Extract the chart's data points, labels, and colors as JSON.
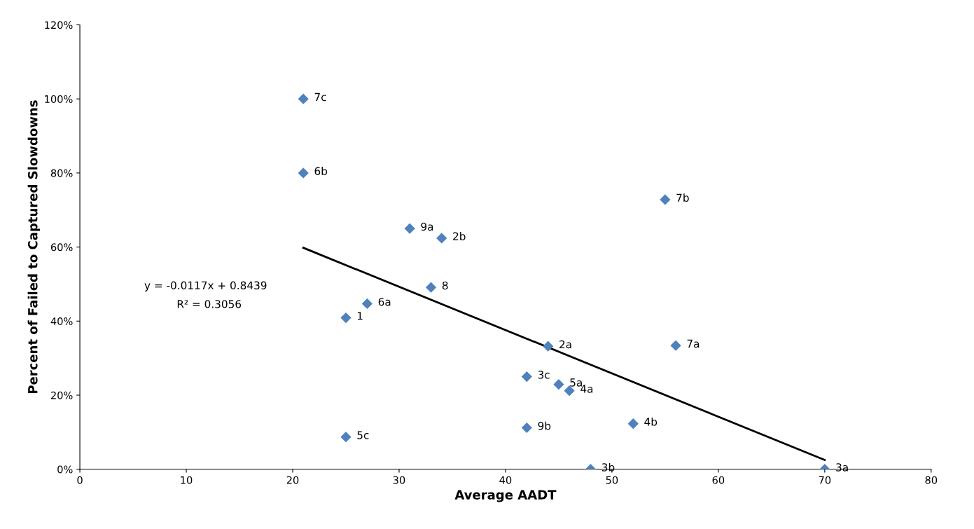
{
  "chart_data": {
    "type": "scatter",
    "xlabel": "Average AADT",
    "ylabel": "Percent of Failed to Captured Slowdowns",
    "xlim": [
      0,
      80
    ],
    "xticks": [
      0,
      10,
      20,
      30,
      40,
      50,
      60,
      70,
      80
    ],
    "ylim": [
      0,
      120
    ],
    "yticks": [
      {
        "value": 0,
        "label": "0%"
      },
      {
        "value": 20,
        "label": "20%"
      },
      {
        "value": 40,
        "label": "40%"
      },
      {
        "value": 60,
        "label": "60%"
      },
      {
        "value": 80,
        "label": "80%"
      },
      {
        "value": 100,
        "label": "100%"
      },
      {
        "value": 120,
        "label": "120%"
      }
    ],
    "grid": false,
    "legend": false,
    "marker": "diamond",
    "series": [
      {
        "color": "#4f81bd",
        "x": [
          21,
          21,
          31,
          34,
          33,
          27,
          25,
          55,
          44,
          56,
          42,
          45,
          46,
          52,
          42,
          25,
          48,
          70
        ],
        "values": [
          100,
          80,
          65,
          62.4,
          49.1,
          44.7,
          40.9,
          72.8,
          33.2,
          33.4,
          25,
          22.9,
          21.2,
          12.3,
          11.2,
          8.7,
          0,
          0
        ]
      },
      {
        "type": "line",
        "marker": "none",
        "color": "#000000",
        "x": [
          21,
          70
        ],
        "values": [
          59.8,
          2.5
        ]
      }
    ],
    "annotations": [
      "y = -0.0117x + 0.8439",
      "R² = 0.3056",
      {
        "text": "7c",
        "x": 21,
        "y": 100
      },
      {
        "text": "6b",
        "x": 21,
        "y": 80
      },
      {
        "text": "9a",
        "x": 31,
        "y": 65
      },
      {
        "text": "2b",
        "x": 34,
        "y": 62.4
      },
      {
        "text": "8",
        "x": 33,
        "y": 49.1
      },
      {
        "text": "6a",
        "x": 27,
        "y": 44.7
      },
      {
        "text": "1",
        "x": 25,
        "y": 40.9
      },
      {
        "text": "7b",
        "x": 55,
        "y": 72.8
      },
      {
        "text": "2a",
        "x": 44,
        "y": 33.2
      },
      {
        "text": "7a",
        "x": 56,
        "y": 33.4
      },
      {
        "text": "3c",
        "x": 42,
        "y": 25
      },
      {
        "text": "5a",
        "x": 45,
        "y": 22.9
      },
      {
        "text": "4a",
        "x": 46,
        "y": 21.2
      },
      {
        "text": "4b",
        "x": 52,
        "y": 12.3
      },
      {
        "text": "9b",
        "x": 42,
        "y": 11.2
      },
      {
        "text": "5c",
        "x": 25,
        "y": 8.7
      },
      {
        "text": "3b",
        "x": 48,
        "y": 0
      },
      {
        "text": "3a",
        "x": 70,
        "y": 0
      }
    ]
  }
}
